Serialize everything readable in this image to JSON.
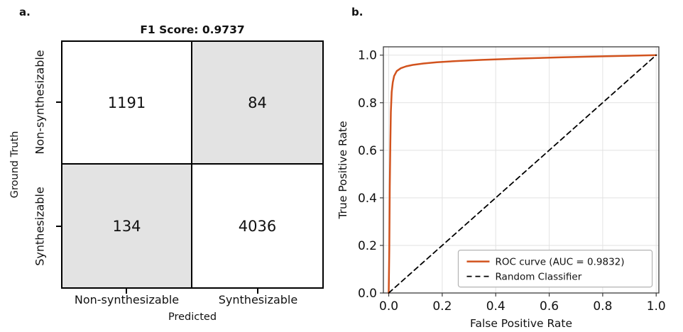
{
  "panels": {
    "a": "a.",
    "b": "b."
  },
  "colors": {
    "gridline": "#e2e2e2",
    "spine": "#3b3b3b",
    "legend_border": "#b3b3b3",
    "legend_background": "#ffffff"
  },
  "chart_data": [
    {
      "type": "heatmap",
      "title": "F1 Score: 0.9737",
      "xlabel": "Predicted",
      "ylabel": "Ground Truth",
      "x_categories": [
        "Non-synthesizable",
        "Synthesizable"
      ],
      "y_categories": [
        "Non-synthesizable",
        "Synthesizable"
      ],
      "values": [
        [
          1191,
          84
        ],
        [
          134,
          4036
        ]
      ],
      "cell_colors": [
        [
          "#ffffff",
          "#e3e3e3"
        ],
        [
          "#e3e3e3",
          "#ffffff"
        ]
      ]
    },
    {
      "type": "line",
      "title": "",
      "xlabel": "False Positive Rate",
      "ylabel": "True Positive Rate",
      "xlim": [
        -0.02,
        1.01
      ],
      "ylim": [
        0,
        1.035
      ],
      "xticks": [
        0,
        0.2,
        0.4,
        0.6,
        0.8,
        1.0
      ],
      "yticks": [
        0,
        0.2,
        0.4,
        0.6,
        0.8,
        1.0
      ],
      "xtick_labels": [
        "0.0",
        "0.2",
        "0.4",
        "0.6",
        "0.8",
        "1.0"
      ],
      "ytick_labels": [
        "0.0",
        "0.2",
        "0.4",
        "0.6",
        "0.8",
        "1.0"
      ],
      "grid": true,
      "legend_position": "lower right",
      "legend": {
        "x0": 0.26,
        "x1": 0.985,
        "y0": 0.025,
        "y1": 0.18
      },
      "series": [
        {
          "key": "roc-curve",
          "name": "ROC curve (AUC = 0.9832)",
          "color": "#d2531e",
          "style": "solid",
          "x": [
            0,
            0.002,
            0.004,
            0.006,
            0.008,
            0.011,
            0.015,
            0.02,
            0.03,
            0.045,
            0.065,
            0.09,
            0.13,
            0.18,
            0.25,
            0.35,
            0.5,
            0.65,
            0.8,
            1.0
          ],
          "y": [
            0,
            0.18,
            0.45,
            0.63,
            0.76,
            0.845,
            0.885,
            0.912,
            0.933,
            0.945,
            0.953,
            0.959,
            0.965,
            0.97,
            0.975,
            0.98,
            0.986,
            0.991,
            0.995,
            1.0
          ]
        },
        {
          "key": "random-classifier",
          "name": "Random Classifier",
          "color": "#000000",
          "style": "dashed",
          "x": [
            0,
            1
          ],
          "y": [
            0,
            1
          ]
        }
      ]
    }
  ]
}
